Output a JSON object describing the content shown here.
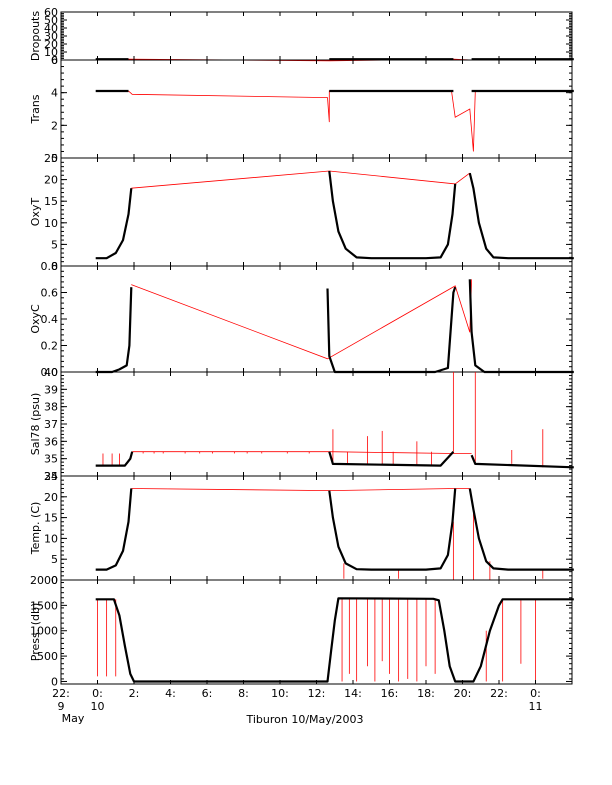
{
  "chart_data": {
    "type": "line",
    "title": "",
    "xlabel": "Tiburon 10/May/2003",
    "x_range": [
      "09 May 22:00",
      "11 May 02:00"
    ],
    "x_ticks": [
      {
        "label": "22:",
        "sub": "9",
        "sub2": "May",
        "at": -2
      },
      {
        "label": "0:",
        "sub": "10",
        "sub2": "",
        "at": 0
      },
      {
        "label": "2:",
        "sub": "",
        "sub2": "",
        "at": 2
      },
      {
        "label": "4:",
        "sub": "",
        "sub2": "",
        "at": 4
      },
      {
        "label": "6:",
        "sub": "",
        "sub2": "",
        "at": 6
      },
      {
        "label": "8:",
        "sub": "",
        "sub2": "",
        "at": 8
      },
      {
        "label": "10:",
        "sub": "",
        "sub2": "",
        "at": 10
      },
      {
        "label": "12:",
        "sub": "",
        "sub2": "",
        "at": 12
      },
      {
        "label": "14:",
        "sub": "",
        "sub2": "",
        "at": 14
      },
      {
        "label": "16:",
        "sub": "",
        "sub2": "",
        "at": 16
      },
      {
        "label": "18:",
        "sub": "",
        "sub2": "",
        "at": 18
      },
      {
        "label": "20:",
        "sub": "",
        "sub2": "",
        "at": 20
      },
      {
        "label": "22:",
        "sub": "",
        "sub2": "",
        "at": 22
      },
      {
        "label": "0:",
        "sub": "11",
        "sub2": "",
        "at": 24
      }
    ],
    "colors": {
      "data": "#000000",
      "interpolated": "#ff0000",
      "axis": "#000000"
    },
    "panels": [
      {
        "id": "dropouts",
        "ylabel": "Dropouts",
        "ylim": [
          0,
          60
        ],
        "ticks": [
          {
            "v": 0,
            "l": "0"
          },
          {
            "v": 10,
            "l": "10"
          },
          {
            "v": 20,
            "l": "20"
          },
          {
            "v": 30,
            "l": "30"
          },
          {
            "v": 40,
            "l": "40"
          },
          {
            "v": 50,
            "l": "50"
          },
          {
            "v": 60,
            "l": "60"
          }
        ],
        "data": [
          [
            -0.1,
            1
          ],
          [
            1.7,
            1
          ],
          [
            12.7,
            1
          ],
          [
            19.5,
            1
          ],
          [
            20.5,
            1
          ],
          [
            26.1,
            1
          ]
        ],
        "segments": [
          [
            -0.1,
            1.7
          ],
          [
            12.7,
            19.5
          ],
          [
            20.5,
            26.1
          ]
        ],
        "red": [
          [
            1.7,
            1
          ],
          [
            12.7,
            -1
          ],
          [
            19.5,
            1
          ],
          [
            20.5,
            0
          ]
        ]
      },
      {
        "id": "trans",
        "ylabel": "Trans",
        "ylim": [
          0,
          6
        ],
        "ticks": [
          {
            "v": 0,
            "l": "0"
          },
          {
            "v": 2,
            "l": "2"
          },
          {
            "v": 4,
            "l": "4"
          },
          {
            "v": 6,
            "l": "6"
          }
        ],
        "data": [
          [
            -0.1,
            4.1
          ],
          [
            1.7,
            4.1
          ],
          [
            1.9,
            3.9
          ],
          [
            12.6,
            3.7
          ],
          [
            12.7,
            4.1
          ],
          [
            19.5,
            4.1
          ],
          [
            20.4,
            3.0
          ],
          [
            20.5,
            4.1
          ],
          [
            26.1,
            4.1
          ]
        ],
        "segments": [
          [
            -0.1,
            1.7
          ],
          [
            12.7,
            19.5
          ],
          [
            20.5,
            26.1
          ]
        ],
        "red": [
          [
            1.7,
            4.1
          ],
          [
            1.9,
            3.9
          ],
          [
            12.6,
            3.7
          ],
          [
            12.7,
            2.2
          ],
          [
            12.7,
            4.1
          ],
          [
            19.4,
            4.1
          ],
          [
            19.6,
            2.5
          ],
          [
            20.4,
            3.0
          ],
          [
            20.6,
            0.4
          ],
          [
            20.7,
            4.1
          ]
        ]
      },
      {
        "id": "oxyt",
        "ylabel": "OxyT",
        "ylim": [
          0,
          25
        ],
        "ticks": [
          {
            "v": 0,
            "l": "0"
          },
          {
            "v": 5,
            "l": "5"
          },
          {
            "v": 10,
            "l": "10"
          },
          {
            "v": 15,
            "l": "15"
          },
          {
            "v": 20,
            "l": "20"
          },
          {
            "v": 25,
            "l": "25"
          }
        ],
        "data": [
          [
            -0.1,
            1.8
          ],
          [
            0.5,
            1.8
          ],
          [
            1.0,
            3.0
          ],
          [
            1.4,
            6.0
          ],
          [
            1.7,
            12.0
          ],
          [
            1.85,
            18.0
          ],
          [
            12.7,
            22.0
          ],
          [
            12.9,
            15.0
          ],
          [
            13.2,
            8.0
          ],
          [
            13.6,
            4.0
          ],
          [
            14.2,
            2.0
          ],
          [
            15.0,
            1.8
          ],
          [
            18.0,
            1.8
          ],
          [
            18.8,
            2.0
          ],
          [
            19.2,
            5.0
          ],
          [
            19.45,
            12.0
          ],
          [
            19.6,
            19.0
          ],
          [
            20.4,
            21.5
          ],
          [
            20.6,
            18.0
          ],
          [
            20.9,
            10.0
          ],
          [
            21.3,
            4.0
          ],
          [
            21.7,
            2.0
          ],
          [
            22.5,
            1.8
          ],
          [
            26.1,
            1.8
          ]
        ],
        "segments": [
          [
            -0.1,
            1.85
          ],
          [
            12.7,
            19.6
          ],
          [
            20.4,
            26.1
          ]
        ],
        "red": [
          [
            1.85,
            18.0
          ],
          [
            12.7,
            22.0
          ],
          [
            19.6,
            19.0
          ],
          [
            20.4,
            21.5
          ]
        ]
      },
      {
        "id": "oxyc",
        "ylabel": "OxyC",
        "ylim": [
          0,
          0.8
        ],
        "ticks": [
          {
            "v": 0,
            "l": "0.0"
          },
          {
            "v": 0.2,
            "l": "0.2"
          },
          {
            "v": 0.4,
            "l": "0.4"
          },
          {
            "v": 0.6,
            "l": "0.6"
          },
          {
            "v": 0.8,
            "l": "0.8"
          }
        ],
        "data": [
          [
            -0.1,
            0.0
          ],
          [
            0.8,
            0.0
          ],
          [
            1.2,
            0.02
          ],
          [
            1.6,
            0.05
          ],
          [
            1.75,
            0.2
          ],
          [
            1.85,
            0.64
          ],
          [
            12.6,
            0.63
          ],
          [
            12.7,
            0.12
          ],
          [
            13.0,
            0.0
          ],
          [
            18.5,
            0.0
          ],
          [
            19.2,
            0.03
          ],
          [
            19.5,
            0.6
          ],
          [
            19.6,
            0.64
          ],
          [
            20.1,
            0.55
          ],
          [
            20.4,
            0.7
          ],
          [
            20.5,
            0.3
          ],
          [
            20.7,
            0.05
          ],
          [
            21.2,
            0.0
          ],
          [
            26.1,
            0.0
          ]
        ],
        "segments": [
          [
            -0.1,
            1.85
          ],
          [
            12.6,
            19.6
          ],
          [
            20.4,
            26.1
          ]
        ],
        "red": [
          [
            1.85,
            0.66
          ],
          [
            12.6,
            0.1
          ],
          [
            19.6,
            0.65
          ],
          [
            20.4,
            0.3
          ],
          [
            20.5,
            0.7
          ]
        ]
      },
      {
        "id": "sal",
        "ylabel": "Sal78 (psu)",
        "ylim": [
          34,
          40
        ],
        "ticks": [
          {
            "v": 34,
            "l": "34"
          },
          {
            "v": 35,
            "l": "35"
          },
          {
            "v": 36,
            "l": "36"
          },
          {
            "v": 37,
            "l": "37"
          },
          {
            "v": 38,
            "l": "38"
          },
          {
            "v": 39,
            "l": "39"
          },
          {
            "v": 40,
            "l": "40"
          }
        ],
        "data": [
          [
            -0.1,
            34.6
          ],
          [
            1.5,
            34.6
          ],
          [
            1.8,
            35.0
          ],
          [
            1.9,
            35.4
          ],
          [
            12.7,
            35.4
          ],
          [
            12.9,
            34.7
          ],
          [
            18.8,
            34.6
          ],
          [
            19.5,
            35.4
          ],
          [
            20.5,
            35.2
          ],
          [
            20.7,
            34.7
          ],
          [
            26.1,
            34.5
          ]
        ],
        "segments": [
          [
            -0.1,
            1.9
          ],
          [
            12.7,
            19.5
          ],
          [
            20.5,
            26.1
          ]
        ],
        "spikes": [
          0.3,
          0.8,
          1.2,
          2.5,
          3.1,
          3.6,
          4.8,
          5.6,
          6.3,
          7.5,
          8.2,
          9.0,
          10.4,
          11.6,
          12.9,
          13.7,
          14.8,
          15.6,
          16.2,
          17.5,
          18.3,
          19.5,
          20.7,
          22.7,
          24.4
        ],
        "spike_values": [
          35.3,
          35.3,
          35.3,
          35.3,
          35.3,
          35.3,
          35.3,
          35.3,
          35.3,
          35.3,
          35.3,
          35.3,
          35.3,
          35.3,
          36.7,
          35.4,
          36.3,
          36.6,
          35.4,
          36.0,
          35.4,
          40.0,
          40.0,
          35.5,
          36.7
        ],
        "red": [
          [
            1.9,
            35.4
          ],
          [
            12.7,
            35.4
          ],
          [
            19.5,
            35.3
          ],
          [
            20.5,
            35.3
          ]
        ]
      },
      {
        "id": "temp",
        "ylabel": "Temp. (C)",
        "ylim": [
          0,
          25
        ],
        "ticks": [
          {
            "v": 0,
            "l": "0"
          },
          {
            "v": 5,
            "l": "5"
          },
          {
            "v": 10,
            "l": "10"
          },
          {
            "v": 15,
            "l": "15"
          },
          {
            "v": 20,
            "l": "20"
          },
          {
            "v": 25,
            "l": "25"
          }
        ],
        "data": [
          [
            -0.1,
            2.5
          ],
          [
            0.5,
            2.5
          ],
          [
            1.0,
            3.5
          ],
          [
            1.4,
            7.0
          ],
          [
            1.7,
            14.0
          ],
          [
            1.85,
            22.0
          ],
          [
            12.7,
            21.5
          ],
          [
            12.9,
            15.0
          ],
          [
            13.2,
            8.0
          ],
          [
            13.6,
            4.0
          ],
          [
            14.2,
            2.6
          ],
          [
            15.0,
            2.5
          ],
          [
            18.0,
            2.5
          ],
          [
            18.8,
            2.8
          ],
          [
            19.2,
            6.0
          ],
          [
            19.45,
            14.0
          ],
          [
            19.6,
            22.0
          ],
          [
            20.4,
            22.0
          ],
          [
            20.6,
            17.0
          ],
          [
            20.9,
            10.0
          ],
          [
            21.3,
            4.5
          ],
          [
            21.7,
            2.8
          ],
          [
            22.5,
            2.5
          ],
          [
            26.1,
            2.5
          ]
        ],
        "segments": [
          [
            -0.1,
            1.85
          ],
          [
            12.7,
            19.6
          ],
          [
            20.4,
            26.1
          ]
        ],
        "spikes": [
          13.5,
          16.5,
          19.5,
          20.6,
          21.5,
          24.4
        ],
        "spike_values": [
          0.3,
          0.3,
          0.0,
          0.0,
          0.0,
          0.3
        ],
        "red": [
          [
            1.85,
            22.0
          ],
          [
            12.7,
            21.5
          ],
          [
            19.6,
            22.0
          ],
          [
            20.4,
            22.0
          ]
        ]
      },
      {
        "id": "press",
        "ylabel": "Press. (db)",
        "ylim": [
          -50,
          2000
        ],
        "ticks": [
          {
            "v": 0,
            "l": "0"
          },
          {
            "v": 500,
            "l": "500"
          },
          {
            "v": 1000,
            "l": "1000"
          },
          {
            "v": 1500,
            "l": "1500"
          },
          {
            "v": 2000,
            "l": "2000"
          }
        ],
        "data": [
          [
            -0.1,
            1620
          ],
          [
            0.9,
            1620
          ],
          [
            1.2,
            1300
          ],
          [
            1.5,
            700
          ],
          [
            1.8,
            150
          ],
          [
            2.0,
            0
          ],
          [
            12.6,
            0
          ],
          [
            12.8,
            600
          ],
          [
            13.0,
            1200
          ],
          [
            13.2,
            1640
          ],
          [
            18.4,
            1630
          ],
          [
            18.7,
            1600
          ],
          [
            19.0,
            1000
          ],
          [
            19.3,
            300
          ],
          [
            19.6,
            0
          ],
          [
            20.6,
            0
          ],
          [
            21.0,
            300
          ],
          [
            21.5,
            1000
          ],
          [
            22.0,
            1500
          ],
          [
            22.2,
            1620
          ],
          [
            26.1,
            1620
          ]
        ],
        "segments": [
          [
            -0.1,
            26.1
          ]
        ],
        "spikes": [
          0.0,
          0.5,
          1.0,
          13.4,
          13.8,
          14.2,
          14.8,
          15.2,
          15.6,
          16.0,
          16.5,
          17.0,
          17.5,
          18.0,
          18.5,
          21.3,
          22.2,
          23.2,
          24.0
        ],
        "spike_values": [
          100,
          100,
          100,
          0,
          150,
          0,
          300,
          0,
          400,
          150,
          0,
          50,
          0,
          300,
          150,
          0,
          0,
          350,
          0
        ],
        "red": []
      }
    ]
  }
}
